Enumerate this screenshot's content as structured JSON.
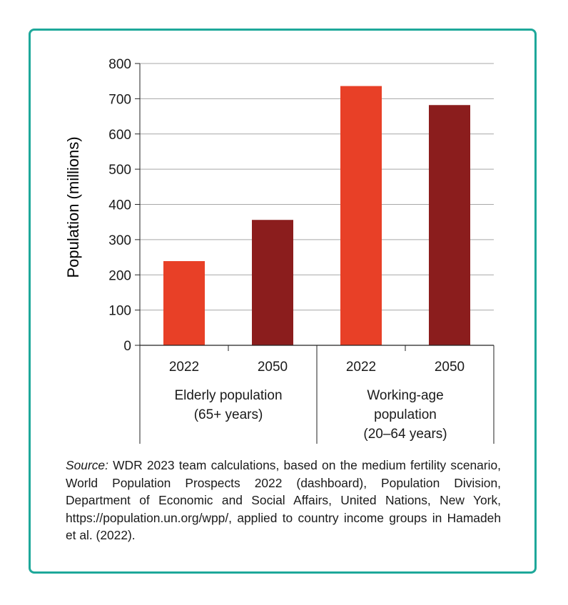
{
  "colors": {
    "border": "#1ea89a",
    "y2022": "#e84027",
    "y2050": "#8b1d1d",
    "grid": "#a7a7a7"
  },
  "chart_data": {
    "type": "bar",
    "ylabel": "Population (millions)",
    "ylim": [
      0,
      800
    ],
    "yticks": [
      0,
      100,
      200,
      300,
      400,
      500,
      600,
      700,
      800
    ],
    "grid": true,
    "groups": [
      {
        "label_lines": [
          "Elderly population",
          "(65+ years)"
        ],
        "bars": [
          {
            "category": "2022",
            "value": 239,
            "color": "#e84027"
          },
          {
            "category": "2050",
            "value": 356,
            "color": "#8b1d1d"
          }
        ]
      },
      {
        "label_lines": [
          "Working-age",
          "population",
          "(20–64 years)"
        ],
        "bars": [
          {
            "category": "2022",
            "value": 736,
            "color": "#e84027"
          },
          {
            "category": "2050",
            "value": 682,
            "color": "#8b1d1d"
          }
        ]
      }
    ]
  },
  "source": {
    "label": "Source:",
    "text": " WDR 2023 team calculations, based on the medium fertility scenario, World Population Prospects 2022 (dashboard), Population Division, Department of Economic and Social Affairs, United Nations, New York, https://population.un.org/wpp/, applied to country income groups in Hamadeh et al. (2022)."
  }
}
